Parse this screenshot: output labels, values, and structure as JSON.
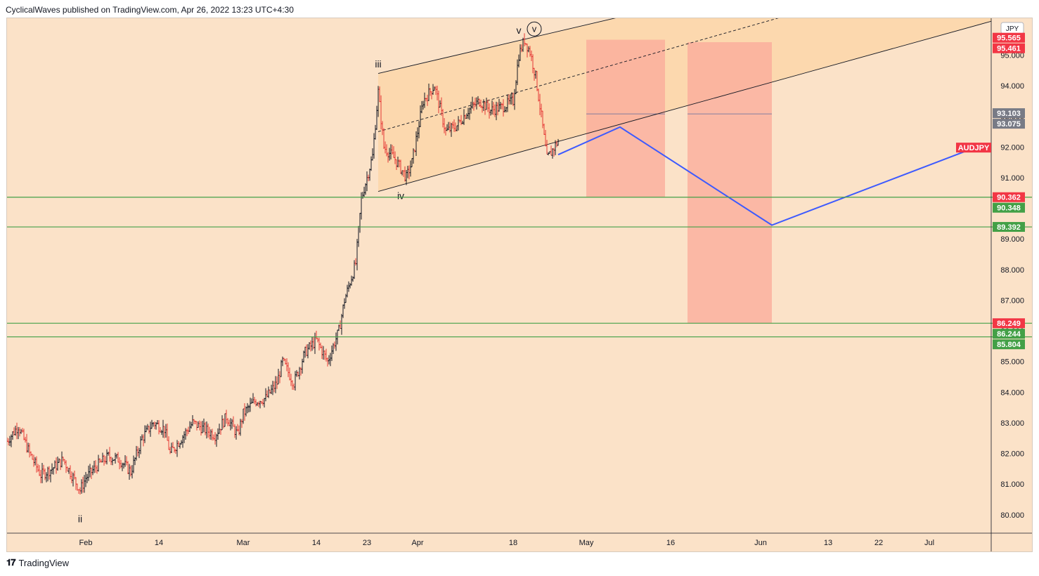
{
  "header": {
    "text": "CyclicalWaves published on TradingView.com, Apr 26, 2022 13:23 UTC+4:30"
  },
  "footer": {
    "logo_icon": "tradingview-logo-icon",
    "logo_text": "TradingView"
  },
  "chart_data": {
    "type": "candlestick",
    "symbol": "AUDJPY",
    "currency": "JPY",
    "ylim": [
      79.4,
      96.2
    ],
    "yticks": [
      80,
      81,
      82,
      83,
      84,
      85,
      86,
      87,
      88,
      89,
      90,
      91,
      92,
      93,
      94,
      95
    ],
    "ytick_labels": [
      "80.000",
      "81.000",
      "82.000",
      "83.000",
      "84.000",
      "85.000",
      "86.000",
      "87.000",
      "88.000",
      "89.000",
      "90.000",
      "91.000",
      "92.000",
      "93.000",
      "94.000",
      "95.000"
    ],
    "x_start": "2022-01-18",
    "x_end": "2022-07-12",
    "xticks": [
      {
        "date": "2022-02-01",
        "label": "Feb"
      },
      {
        "date": "2022-02-14",
        "label": "14"
      },
      {
        "date": "2022-03-01",
        "label": "Mar"
      },
      {
        "date": "2022-03-14",
        "label": "14"
      },
      {
        "date": "2022-03-23",
        "label": "23"
      },
      {
        "date": "2022-04-01",
        "label": "Apr"
      },
      {
        "date": "2022-04-18",
        "label": "18"
      },
      {
        "date": "2022-05-01",
        "label": "May"
      },
      {
        "date": "2022-05-16",
        "label": "16"
      },
      {
        "date": "2022-06-01",
        "label": "Jun"
      },
      {
        "date": "2022-06-13",
        "label": "13"
      },
      {
        "date": "2022-06-22",
        "label": "22"
      },
      {
        "date": "2022-07-01",
        "label": "Jul"
      }
    ],
    "price_path": [
      [
        "2022-01-18",
        82.4
      ],
      [
        "2022-01-20",
        82.9
      ],
      [
        "2022-01-22",
        82.0
      ],
      [
        "2022-01-24",
        81.3
      ],
      [
        "2022-01-26",
        81.5
      ],
      [
        "2022-01-28",
        81.8
      ],
      [
        "2022-01-31",
        80.8
      ],
      [
        "2022-02-01",
        81.2
      ],
      [
        "2022-02-03",
        81.6
      ],
      [
        "2022-02-05",
        81.9
      ],
      [
        "2022-02-07",
        81.8
      ],
      [
        "2022-02-09",
        81.4
      ],
      [
        "2022-02-11",
        82.5
      ],
      [
        "2022-02-13",
        83.0
      ],
      [
        "2022-02-15",
        82.8
      ],
      [
        "2022-02-16",
        82.0
      ],
      [
        "2022-02-18",
        82.5
      ],
      [
        "2022-02-20",
        83.0
      ],
      [
        "2022-02-22",
        82.8
      ],
      [
        "2022-02-24",
        82.6
      ],
      [
        "2022-02-26",
        83.2
      ],
      [
        "2022-02-28",
        82.6
      ],
      [
        "2022-03-01",
        83.3
      ],
      [
        "2022-03-03",
        83.7
      ],
      [
        "2022-03-05",
        83.8
      ],
      [
        "2022-03-07",
        84.3
      ],
      [
        "2022-03-08",
        85.0
      ],
      [
        "2022-03-10",
        84.3
      ],
      [
        "2022-03-12",
        85.3
      ],
      [
        "2022-03-14",
        85.7
      ],
      [
        "2022-03-16",
        85.0
      ],
      [
        "2022-03-18",
        86.0
      ],
      [
        "2022-03-19",
        87.0
      ],
      [
        "2022-03-21",
        88.2
      ],
      [
        "2022-03-22",
        90.3
      ],
      [
        "2022-03-24",
        91.7
      ],
      [
        "2022-03-25",
        93.8
      ],
      [
        "2022-03-26",
        92.0
      ],
      [
        "2022-03-28",
        91.6
      ],
      [
        "2022-03-30",
        91.0
      ],
      [
        "2022-03-31",
        91.5
      ],
      [
        "2022-04-02",
        93.5
      ],
      [
        "2022-04-04",
        94.0
      ],
      [
        "2022-04-06",
        92.5
      ],
      [
        "2022-04-08",
        92.7
      ],
      [
        "2022-04-10",
        93.2
      ],
      [
        "2022-04-12",
        93.5
      ],
      [
        "2022-04-14",
        93.2
      ],
      [
        "2022-04-16",
        93.3
      ],
      [
        "2022-04-18",
        93.5
      ],
      [
        "2022-04-19",
        95.0
      ],
      [
        "2022-04-20",
        95.5
      ],
      [
        "2022-04-21",
        95.1
      ],
      [
        "2022-04-22",
        94.3
      ],
      [
        "2022-04-23",
        93.0
      ],
      [
        "2022-04-24",
        91.6
      ],
      [
        "2022-04-25",
        91.9
      ],
      [
        "2022-04-26",
        92.2
      ]
    ],
    "annotations": [
      {
        "label": "ii",
        "date": "2022-01-31",
        "price": 79.75
      },
      {
        "label": "iii",
        "date": "2022-03-25",
        "price": 94.6
      },
      {
        "label": "iv",
        "date": "2022-03-29",
        "price": 90.3
      },
      {
        "label": "v",
        "date": "2022-04-19",
        "price": 95.7
      },
      {
        "label": "v",
        "date": "2022-04-20",
        "price": 95.85,
        "circled": true
      }
    ],
    "channel": {
      "upper": [
        [
          "2022-03-25",
          94.4
        ],
        [
          "2022-05-06",
          96.2
        ]
      ],
      "middle": [
        [
          "2022-03-25",
          92.5
        ],
        [
          "2022-06-04",
          96.2
        ]
      ],
      "lower": [
        [
          "2022-03-25",
          90.55
        ],
        [
          "2022-07-10",
          96.0
        ]
      ]
    },
    "projection_path": [
      [
        "2022-04-26",
        91.75
      ],
      [
        "2022-05-07",
        92.65
      ],
      [
        "2022-06-03",
        89.45
      ],
      [
        "2022-07-08",
        91.9
      ]
    ],
    "horizontal_levels": [
      90.362,
      89.392,
      86.249,
      85.804
    ],
    "zones": [
      {
        "x0": "2022-05-01",
        "x1": "2022-05-15",
        "y0": 90.36,
        "y1": 95.5,
        "mid": 93.08
      },
      {
        "x0": "2022-05-19",
        "x1": "2022-06-03",
        "y0": 86.25,
        "y1": 95.42,
        "mid": 93.08
      }
    ],
    "price_labels": [
      {
        "text": "95.565",
        "value": 95.565,
        "color": "#f23645"
      },
      {
        "text": "95.461",
        "value": 95.461,
        "color": "#f23645"
      },
      {
        "text": "93.103",
        "value": 93.103,
        "color": "#787b86"
      },
      {
        "text": "93.075",
        "value": 93.075,
        "color": "#787b86"
      },
      {
        "text": "AUDJPY",
        "value": 91.98,
        "color": "#f23645",
        "symbol_tag": true
      },
      {
        "text": "90.362",
        "value": 90.362,
        "color": "#f23645"
      },
      {
        "text": "90.348",
        "value": 90.348,
        "color": "#43a047"
      },
      {
        "text": "89.392",
        "value": 89.392,
        "color": "#43a047"
      },
      {
        "text": "86.249",
        "value": 86.249,
        "color": "#f23645"
      },
      {
        "text": "86.244",
        "value": 86.244,
        "color": "#43a047"
      },
      {
        "text": "85.804",
        "value": 85.804,
        "color": "#43a047"
      }
    ],
    "colors": {
      "background": "#fbe2c8",
      "channel_fill": "#fcd4a6",
      "zone": "#fbaa9a",
      "level_line": "#43a047",
      "projection": "#3d5afe",
      "candle_up": "#131722",
      "candle_down": "#e53935",
      "axis_text": "#131722"
    }
  }
}
